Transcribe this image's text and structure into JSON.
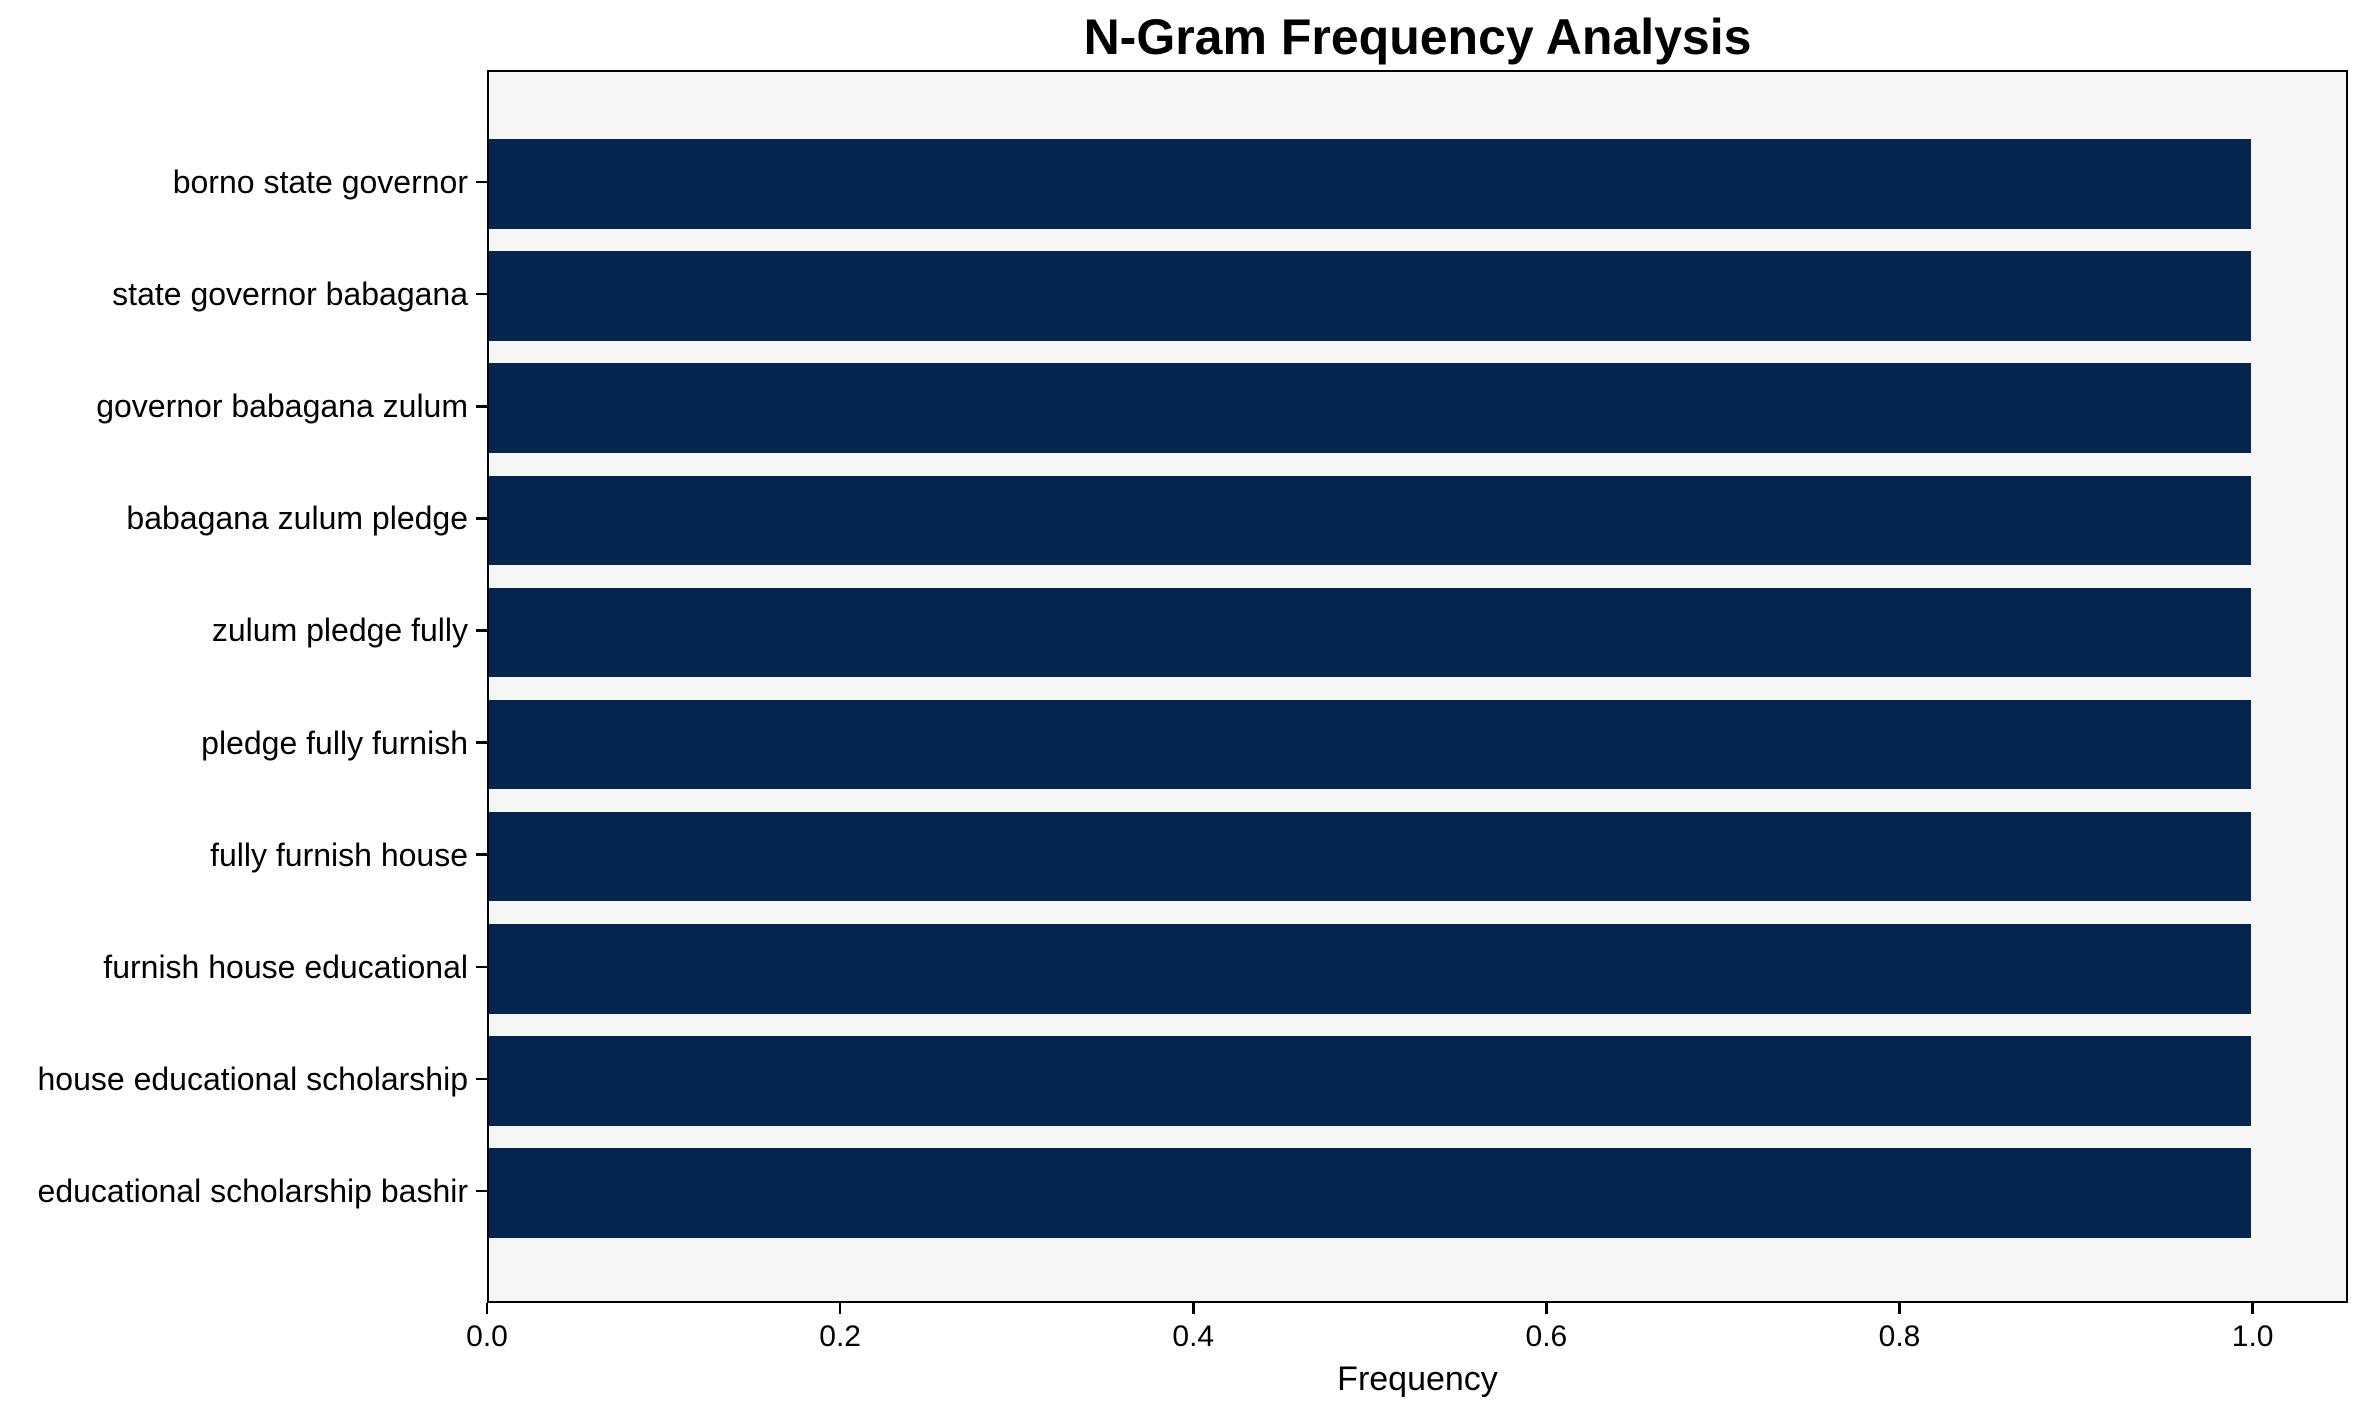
{
  "chart_data": {
    "type": "bar",
    "orientation": "horizontal",
    "title": "N-Gram Frequency Analysis",
    "xlabel": "Frequency",
    "ylabel": "",
    "categories": [
      "borno state governor",
      "state governor babagana",
      "governor babagana zulum",
      "babagana zulum pledge",
      "zulum pledge fully",
      "pledge fully furnish",
      "fully furnish house",
      "furnish house educational",
      "house educational scholarship",
      "educational scholarship bashir"
    ],
    "values": [
      1.0,
      1.0,
      1.0,
      1.0,
      1.0,
      1.0,
      1.0,
      1.0,
      1.0,
      1.0
    ],
    "xlim": [
      0,
      1.054
    ],
    "xticks": {
      "values": [
        0.0,
        0.2,
        0.4,
        0.6,
        0.8,
        1.0
      ],
      "labels": [
        "0.0",
        "0.2",
        "0.4",
        "0.6",
        "0.8",
        "1.0"
      ]
    },
    "grid": false,
    "legend": null,
    "bar_height_fraction": 0.8,
    "colors": {
      "bar": "#03254e",
      "plot_background": "#f6f6f7",
      "figure_background": "#ffffff",
      "spine": "#000000",
      "text": "#000000"
    }
  }
}
